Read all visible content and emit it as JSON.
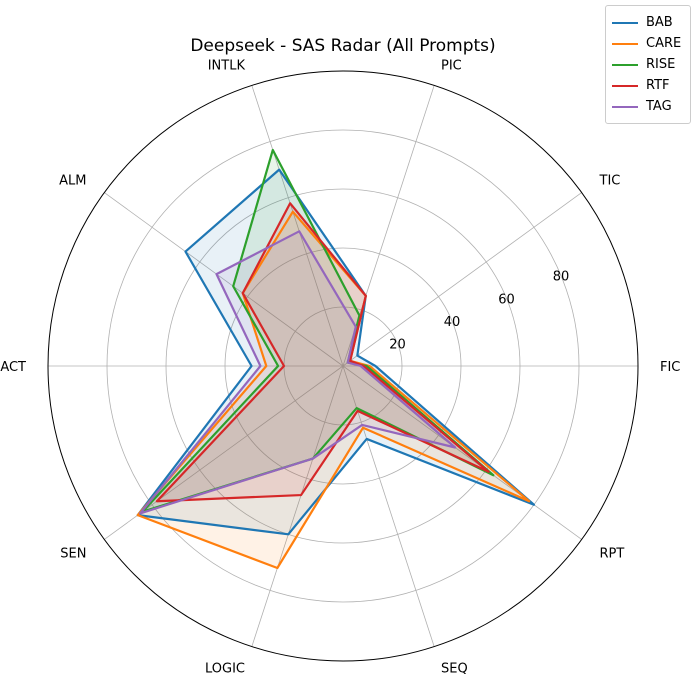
{
  "chart_data": {
    "type": "radar",
    "title": "Deepseek - SAS Radar (All Prompts)",
    "axes": [
      "FIC",
      "TIC",
      "PIC",
      "INTLK",
      "ALM",
      "ACT",
      "SEN",
      "LOGIC",
      "SEQ",
      "RPT"
    ],
    "rticks": [
      20,
      40,
      60,
      80
    ],
    "rlim": [
      0,
      100
    ],
    "grid": true,
    "legend_position": "top-right",
    "series": [
      {
        "name": "BAB",
        "color": "#1f77b4",
        "values": [
          11,
          6,
          25,
          70,
          66,
          31,
          86,
          60,
          26,
          80
        ]
      },
      {
        "name": "CARE",
        "color": "#ff7f0e",
        "values": [
          9,
          3,
          25,
          55,
          42,
          26,
          86,
          72,
          22,
          78
        ]
      },
      {
        "name": "RISE",
        "color": "#2ca02c",
        "values": [
          8,
          2,
          18,
          77,
          46,
          22,
          84,
          33,
          15,
          63
        ]
      },
      {
        "name": "RTF",
        "color": "#d62728",
        "values": [
          7,
          3,
          25,
          58,
          42,
          20,
          78,
          46,
          16,
          61
        ]
      },
      {
        "name": "TAG",
        "color": "#9467bd",
        "values": [
          6,
          2,
          14,
          48,
          53,
          28,
          85,
          33,
          21,
          47
        ]
      }
    ]
  }
}
